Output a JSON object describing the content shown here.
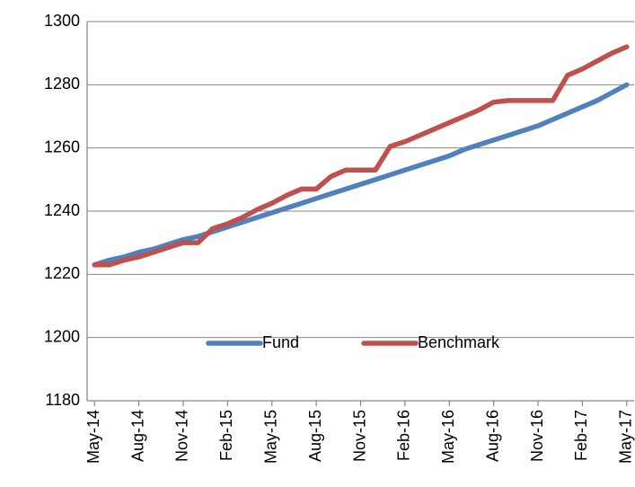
{
  "chart_data": {
    "type": "line",
    "categories": [
      "May-14",
      null,
      null,
      "Aug-14",
      null,
      null,
      "Nov-14",
      null,
      null,
      "Feb-15",
      null,
      null,
      "May-15",
      null,
      null,
      "Aug-15",
      null,
      null,
      "Nov-15",
      null,
      null,
      "Feb-16",
      null,
      null,
      "May-16",
      null,
      null,
      "Aug-16",
      null,
      null,
      "Nov-16",
      null,
      null,
      "Feb-17",
      null,
      null,
      "May-17"
    ],
    "series": [
      {
        "name": "Fund",
        "color": "#4f81bd",
        "values": [
          1223,
          1224.5,
          1225.5,
          1227,
          1228,
          1229.5,
          1231,
          1232,
          1233.5,
          1235,
          1236.5,
          1238,
          1239.5,
          1241,
          1242.5,
          1244,
          1245.5,
          1247,
          1248.5,
          1250,
          1251.5,
          1253,
          1254.5,
          1256,
          1257.5,
          1259.5,
          1261,
          1262.5,
          1264,
          1265.5,
          1267,
          1269,
          1271,
          1273,
          1275,
          1277.5,
          1280
        ]
      },
      {
        "name": "Benchmark",
        "color": "#c0504d",
        "values": [
          1223,
          1223,
          1224.5,
          1225.5,
          1227,
          1228.5,
          1230,
          1230,
          1234.5,
          1236,
          1238,
          1240.5,
          1242.5,
          1245,
          1247,
          1247,
          1251,
          1253,
          1253,
          1253,
          1260.5,
          1262,
          1264,
          1266,
          1268,
          1270,
          1272,
          1274.5,
          1275,
          1275,
          1275,
          1275,
          1283,
          1285,
          1287.5,
          1290,
          1292
        ]
      }
    ],
    "ylim": [
      1180,
      1300
    ],
    "yticks": [
      1180,
      1200,
      1220,
      1240,
      1260,
      1280,
      1300
    ],
    "grid": true,
    "legend": "inside-bottom"
  }
}
